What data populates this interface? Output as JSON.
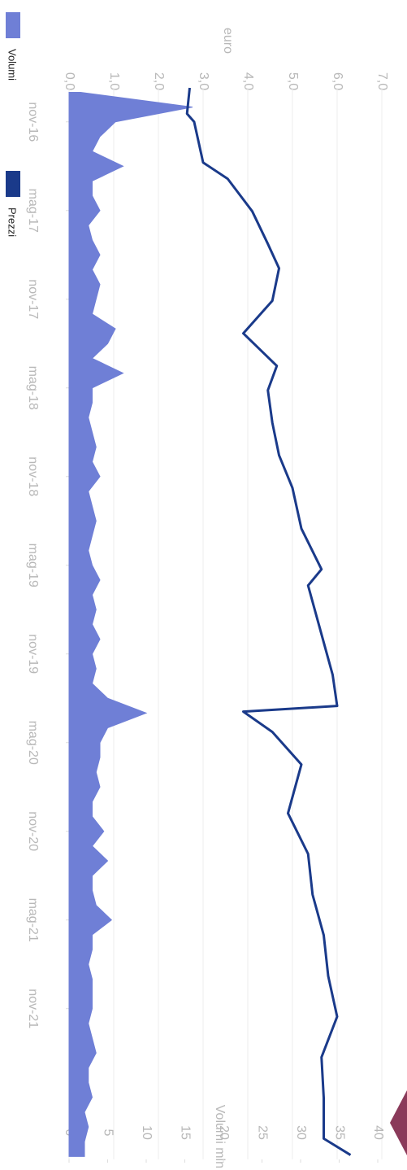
{
  "chart_data": {
    "type": "line",
    "ylabel": "euro",
    "y2label": "Volumi mln azioni",
    "xlim": [
      -2.3,
      70.2
    ],
    "xticks": [
      {
        "value": 0,
        "label": "nov-16"
      },
      {
        "value": 6,
        "label": "mag-17"
      },
      {
        "value": 12,
        "label": "nov-17"
      },
      {
        "value": 18,
        "label": "mag-18"
      },
      {
        "value": 24,
        "label": "nov-18"
      },
      {
        "value": 30,
        "label": "mag-19"
      },
      {
        "value": 36,
        "label": "nov-19"
      },
      {
        "value": 42,
        "label": "mag-20"
      },
      {
        "value": 48,
        "label": "nov-20"
      },
      {
        "value": 54,
        "label": "mag-21"
      },
      {
        "value": 60,
        "label": "nov-21"
      }
    ],
    "ylim": [
      0,
      7
    ],
    "yticks": [
      {
        "value": 0,
        "label": "0,0"
      },
      {
        "value": 1,
        "label": "1,0"
      },
      {
        "value": 2,
        "label": "2,0"
      },
      {
        "value": 3,
        "label": "3,0"
      },
      {
        "value": 4,
        "label": "4,0"
      },
      {
        "value": 5,
        "label": "5,0"
      },
      {
        "value": 6,
        "label": "6,0"
      },
      {
        "value": 7,
        "label": "7,0"
      }
    ],
    "y2lim": [
      0,
      40
    ],
    "y2ticks": [
      0,
      5,
      10,
      15,
      20,
      25,
      30,
      35,
      40
    ],
    "grid": true,
    "series": [
      {
        "name": "Volumi",
        "color": "#6f7fd6",
        "axis": "y2",
        "kind": "area",
        "x": [
          -2,
          -1,
          0,
          1,
          2,
          3,
          4,
          5,
          6,
          7,
          8,
          9,
          10,
          11,
          12,
          13,
          14,
          15,
          16,
          17,
          18,
          19,
          20,
          21,
          22,
          23,
          24,
          25,
          26,
          27,
          28,
          29,
          30,
          31,
          32,
          33,
          34,
          35,
          36,
          37,
          38,
          39,
          40,
          41,
          42,
          43,
          44,
          45,
          46,
          47,
          48,
          49,
          50,
          51,
          52,
          53,
          54,
          55,
          56,
          57,
          58,
          59,
          60,
          61,
          62,
          63,
          64,
          65,
          66,
          67,
          68,
          69,
          70
        ],
        "values": [
          1.5,
          16,
          6,
          4,
          3,
          7,
          3,
          3,
          4,
          2.5,
          3,
          4,
          3,
          4,
          3.5,
          3,
          6,
          5,
          3,
          7,
          3,
          3,
          2.5,
          3,
          3.5,
          3,
          4,
          2.5,
          3,
          3.5,
          3,
          2.5,
          3,
          4,
          3,
          3.5,
          3,
          4,
          3,
          3.5,
          3,
          5,
          10,
          5,
          4,
          4,
          3.5,
          4,
          3,
          3,
          4.5,
          3,
          5,
          3,
          3,
          3.5,
          5.5,
          3,
          3,
          2.5,
          3,
          3,
          3,
          2.5,
          3,
          3.5,
          2.5,
          2.5,
          3,
          2,
          2.5,
          2,
          2
        ]
      },
      {
        "name": "Prezzi",
        "color": "#1a3a8a",
        "kind": "line",
        "x": [
          -2.3,
          -0.55,
          0,
          2.75,
          3.85,
          6.05,
          8.26,
          9.91,
          12.1,
          14.31,
          16.51,
          18.16,
          20.36,
          22.56,
          24.77,
          27.52,
          30.27,
          31.37,
          34.67,
          37.42,
          39.52,
          39.9,
          41.28,
          43.48,
          45.68,
          46.78,
          49.53,
          52.28,
          55.03,
          57.79,
          60.54,
          63.29,
          66.04,
          68.79,
          69.9
        ],
        "values": [
          2.7,
          2.64,
          2.8,
          3.0,
          3.55,
          4.1,
          4.45,
          4.7,
          4.55,
          3.9,
          4.65,
          4.45,
          4.55,
          4.7,
          5.0,
          5.2,
          5.65,
          5.35,
          5.65,
          5.9,
          6.0,
          3.9,
          4.55,
          5.2,
          5.0,
          4.9,
          5.35,
          5.45,
          5.7,
          5.8,
          6.0,
          5.65,
          5.7,
          5.7,
          6.3
        ]
      }
    ]
  }
}
